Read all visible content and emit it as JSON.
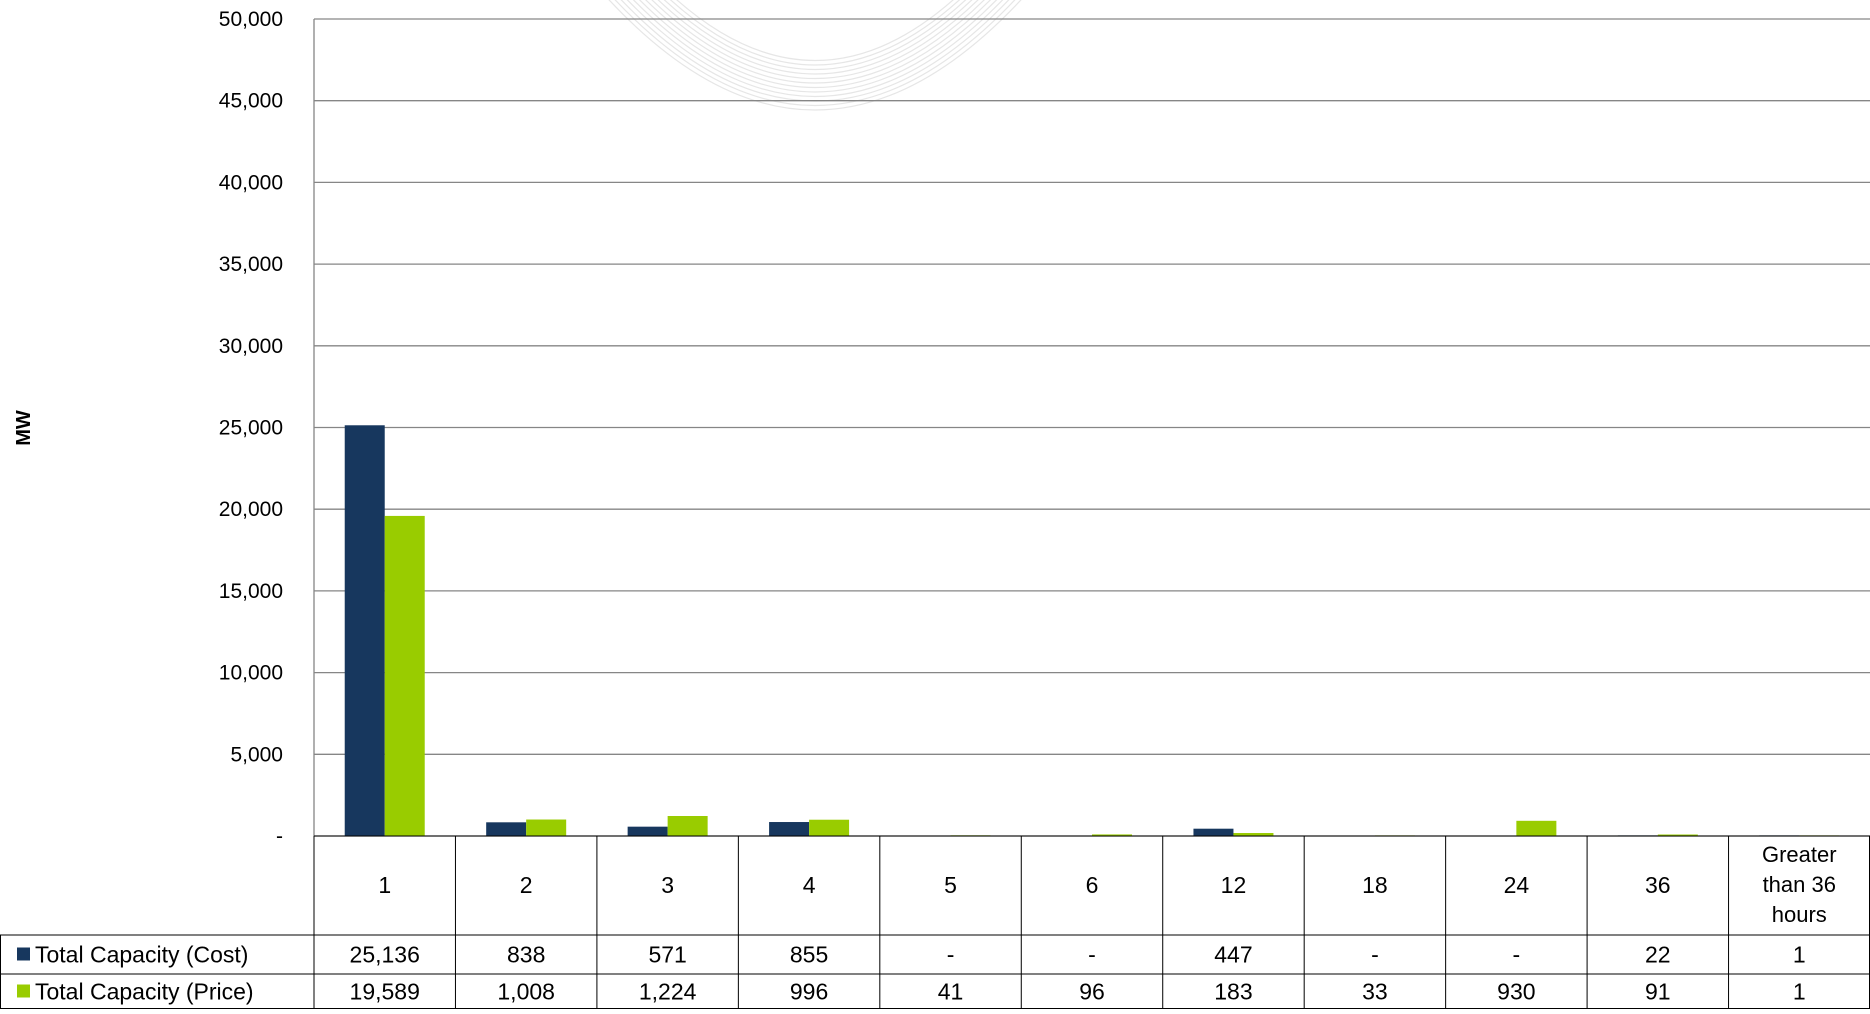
{
  "chart_data": {
    "type": "bar",
    "ylabel": "MW",
    "xlabel": "",
    "ylim": [
      0,
      50000
    ],
    "yticks": [
      0,
      5000,
      10000,
      15000,
      20000,
      25000,
      30000,
      35000,
      40000,
      45000,
      50000
    ],
    "ytick_labels": [
      "-",
      "5,000",
      "10,000",
      "15,000",
      "20,000",
      "25,000",
      "30,000",
      "35,000",
      "40,000",
      "45,000",
      "50,000"
    ],
    "grid": true,
    "legend_placement": "data-table-left",
    "categories": [
      "1",
      "2",
      "3",
      "4",
      "5",
      "6",
      "12",
      "18",
      "24",
      "36",
      "Greater than 36 hours"
    ],
    "series": [
      {
        "name": "Total Capacity (Cost)",
        "color": "#17375e",
        "values": [
          25136,
          838,
          571,
          855,
          0,
          0,
          447,
          0,
          0,
          22,
          1
        ],
        "labels": [
          "25,136",
          "838",
          "571",
          "855",
          "-",
          "-",
          "447",
          "-",
          "-",
          "22",
          "1"
        ]
      },
      {
        "name": "Total Capacity (Price)",
        "color": "#99cc00",
        "values": [
          19589,
          1008,
          1224,
          996,
          41,
          96,
          183,
          33,
          930,
          91,
          1
        ],
        "labels": [
          "19,589",
          "1,008",
          "1,224",
          "996",
          "41",
          "96",
          "183",
          "33",
          "930",
          "91",
          "1"
        ]
      }
    ]
  }
}
